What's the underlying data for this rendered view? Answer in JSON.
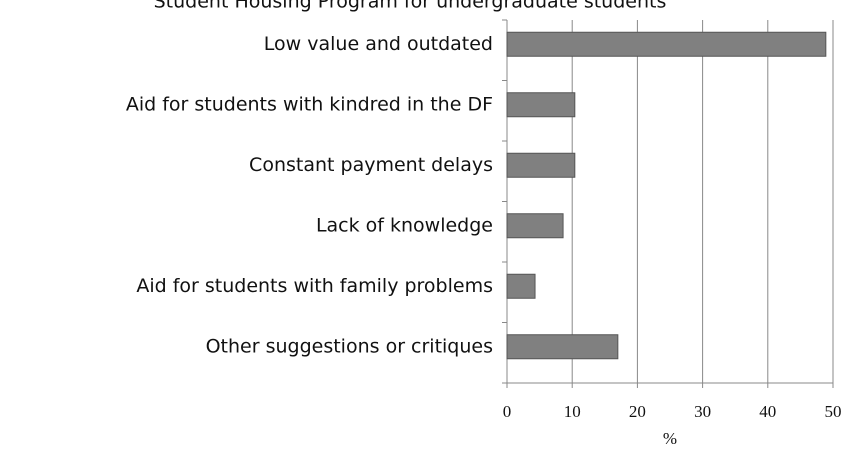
{
  "chart_data": {
    "type": "barh",
    "title": "Student Housing Program for undergraduate students",
    "categories": [
      "Low value and outdated",
      "Aid for students with kindred in the DF",
      "Constant payment delays",
      "Lack of knowledge",
      "Aid for students with family problems",
      "Other suggestions or critiques"
    ],
    "values": [
      48.9,
      10.4,
      10.4,
      8.6,
      4.3,
      17
    ],
    "color": "#808080",
    "xlabel": "%",
    "xlim": [
      0,
      50
    ],
    "xticks": [
      0,
      10,
      20,
      30,
      40,
      50
    ],
    "grid": true
  }
}
